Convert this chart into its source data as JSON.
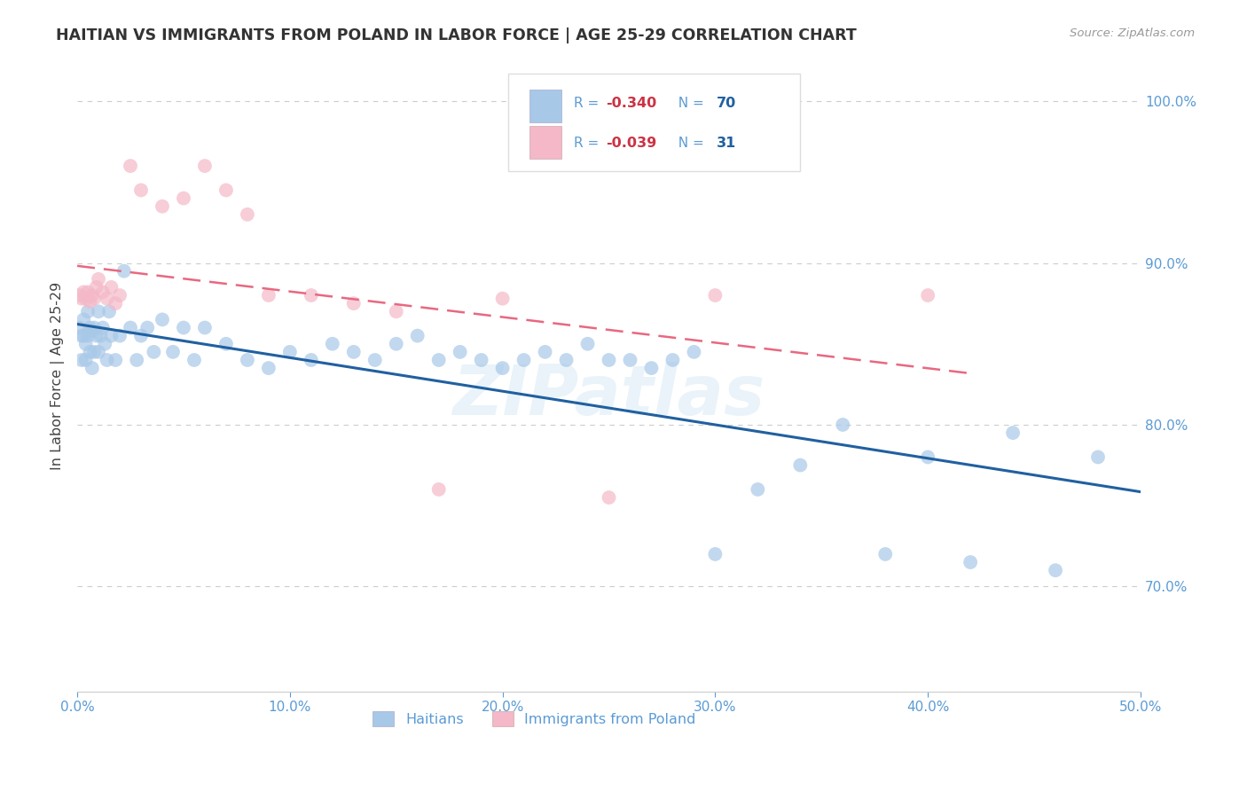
{
  "title": "HAITIAN VS IMMIGRANTS FROM POLAND IN LABOR FORCE | AGE 25-29 CORRELATION CHART",
  "source": "Source: ZipAtlas.com",
  "ylabel": "In Labor Force | Age 25-29",
  "r_blue": -0.34,
  "n_blue": 70,
  "r_pink": -0.039,
  "n_pink": 31,
  "blue_scatter_color": "#a8c8e8",
  "pink_scatter_color": "#f4b8c8",
  "blue_line_color": "#2060a0",
  "pink_line_color": "#e86880",
  "background_color": "#ffffff",
  "grid_color": "#cccccc",
  "axis_tick_color": "#5b9bd5",
  "title_color": "#333333",
  "source_color": "#999999",
  "ylabel_color": "#444444",
  "watermark_text": "ZIPatlas",
  "watermark_color": "#d8eaf5",
  "xlim": [
    0.0,
    0.5
  ],
  "ylim": [
    0.635,
    1.025
  ],
  "xticks": [
    0.0,
    0.1,
    0.2,
    0.3,
    0.4,
    0.5
  ],
  "yticks_right": [
    0.7,
    0.8,
    0.9,
    1.0
  ],
  "blue_x": [
    0.001,
    0.002,
    0.002,
    0.003,
    0.003,
    0.004,
    0.004,
    0.005,
    0.005,
    0.006,
    0.006,
    0.007,
    0.007,
    0.008,
    0.008,
    0.009,
    0.01,
    0.01,
    0.011,
    0.012,
    0.013,
    0.014,
    0.015,
    0.016,
    0.018,
    0.02,
    0.022,
    0.025,
    0.028,
    0.03,
    0.033,
    0.036,
    0.04,
    0.045,
    0.05,
    0.055,
    0.06,
    0.07,
    0.08,
    0.09,
    0.1,
    0.11,
    0.12,
    0.13,
    0.14,
    0.15,
    0.16,
    0.17,
    0.18,
    0.19,
    0.2,
    0.21,
    0.22,
    0.23,
    0.24,
    0.25,
    0.26,
    0.27,
    0.28,
    0.29,
    0.3,
    0.32,
    0.34,
    0.36,
    0.38,
    0.4,
    0.42,
    0.44,
    0.46,
    0.48
  ],
  "blue_y": [
    0.86,
    0.855,
    0.84,
    0.865,
    0.855,
    0.85,
    0.84,
    0.87,
    0.855,
    0.86,
    0.845,
    0.858,
    0.835,
    0.86,
    0.845,
    0.855,
    0.87,
    0.845,
    0.855,
    0.86,
    0.85,
    0.84,
    0.87,
    0.855,
    0.84,
    0.855,
    0.895,
    0.86,
    0.84,
    0.855,
    0.86,
    0.845,
    0.865,
    0.845,
    0.86,
    0.84,
    0.86,
    0.85,
    0.84,
    0.835,
    0.845,
    0.84,
    0.85,
    0.845,
    0.84,
    0.85,
    0.855,
    0.84,
    0.845,
    0.84,
    0.835,
    0.84,
    0.845,
    0.84,
    0.85,
    0.84,
    0.84,
    0.835,
    0.84,
    0.845,
    0.72,
    0.76,
    0.775,
    0.8,
    0.72,
    0.78,
    0.715,
    0.795,
    0.71,
    0.78
  ],
  "pink_x": [
    0.001,
    0.002,
    0.003,
    0.004,
    0.005,
    0.006,
    0.007,
    0.008,
    0.009,
    0.01,
    0.012,
    0.014,
    0.016,
    0.018,
    0.02,
    0.025,
    0.03,
    0.04,
    0.05,
    0.06,
    0.07,
    0.08,
    0.09,
    0.11,
    0.13,
    0.15,
    0.17,
    0.2,
    0.25,
    0.3,
    0.4
  ],
  "pink_y": [
    0.88,
    0.878,
    0.882,
    0.878,
    0.882,
    0.876,
    0.88,
    0.878,
    0.885,
    0.89,
    0.882,
    0.878,
    0.885,
    0.875,
    0.88,
    0.96,
    0.945,
    0.935,
    0.94,
    0.96,
    0.945,
    0.93,
    0.88,
    0.88,
    0.875,
    0.87,
    0.76,
    0.878,
    0.755,
    0.88,
    0.88
  ],
  "legend_blue_label": "Haitians",
  "legend_pink_label": "Immigrants from Poland",
  "legend_text_color": "#5b9bd5",
  "legend_r_color": "#cc3344",
  "legend_n_color": "#2060a0"
}
